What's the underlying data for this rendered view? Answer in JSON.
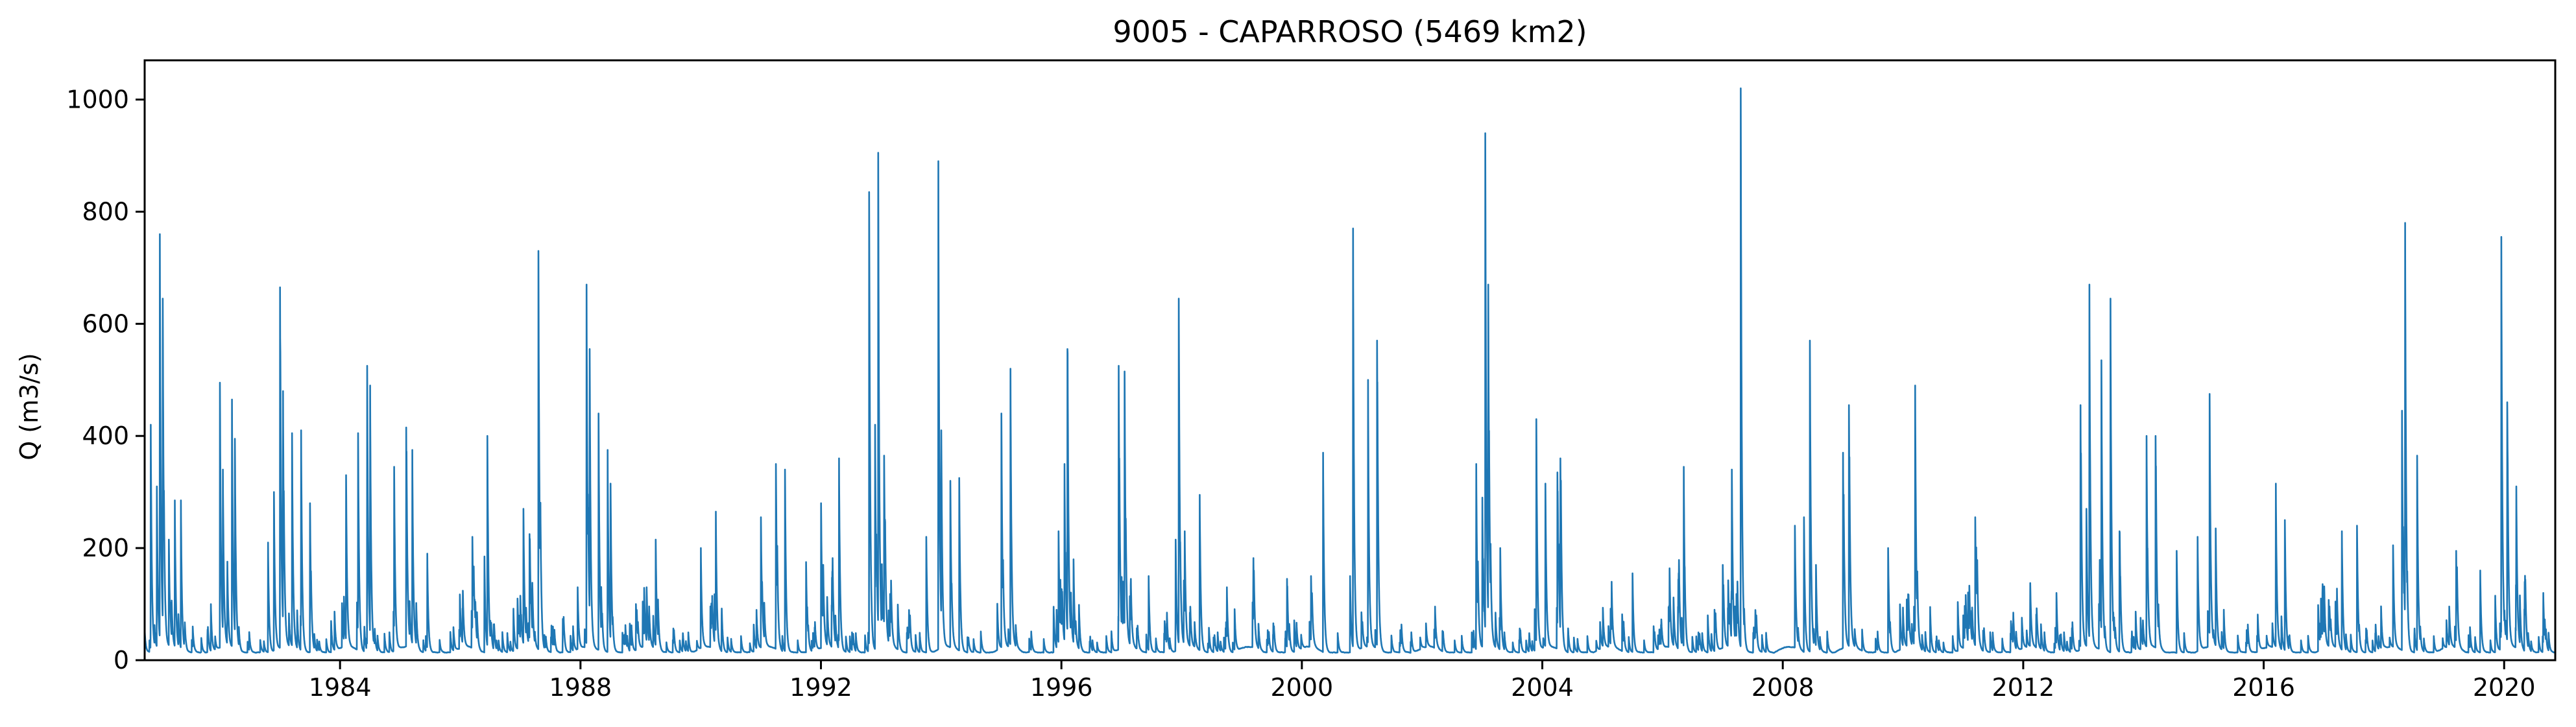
{
  "chart_data": {
    "type": "line",
    "title": "9005 - CAPARROSO (5469 km2)",
    "xlabel": "",
    "ylabel": "Q (m3/s)",
    "xlim": [
      1980.75,
      2020.85
    ],
    "ylim": [
      0,
      1070
    ],
    "xticks": [
      1984,
      1988,
      1992,
      1996,
      2000,
      2004,
      2008,
      2012,
      2016,
      2020
    ],
    "xtick_labels": [
      "1984",
      "1988",
      "1992",
      "1996",
      "2000",
      "2004",
      "2008",
      "2012",
      "2016",
      "2020"
    ],
    "yticks": [
      0,
      200,
      400,
      600,
      800,
      1000
    ],
    "ytick_labels": [
      "0",
      "200",
      "400",
      "600",
      "800",
      "1000"
    ],
    "grid": false,
    "line_color": "#1f77b4",
    "series": [
      {
        "peaks": [
          [
            1980.85,
            420
          ],
          [
            1980.95,
            310
          ],
          [
            1981.0,
            760
          ],
          [
            1981.05,
            645
          ],
          [
            1981.15,
            215
          ],
          [
            1981.25,
            285
          ],
          [
            1981.35,
            285
          ],
          [
            1981.85,
            100
          ],
          [
            1982.0,
            495
          ],
          [
            1982.05,
            340
          ],
          [
            1982.2,
            465
          ],
          [
            1982.25,
            395
          ],
          [
            1982.8,
            210
          ],
          [
            1982.9,
            300
          ],
          [
            1983.0,
            665
          ],
          [
            1983.05,
            480
          ],
          [
            1983.2,
            405
          ],
          [
            1983.35,
            410
          ],
          [
            1983.5,
            280
          ],
          [
            1983.85,
            70
          ],
          [
            1984.1,
            330
          ],
          [
            1984.3,
            405
          ],
          [
            1984.45,
            525
          ],
          [
            1984.5,
            490
          ],
          [
            1984.9,
            345
          ],
          [
            1985.1,
            415
          ],
          [
            1985.2,
            375
          ],
          [
            1985.45,
            190
          ],
          [
            1986.2,
            220
          ],
          [
            1986.4,
            185
          ],
          [
            1986.45,
            400
          ],
          [
            1986.95,
            110
          ],
          [
            1987.05,
            270
          ],
          [
            1987.15,
            225
          ],
          [
            1987.3,
            730
          ],
          [
            1987.95,
            130
          ],
          [
            1988.1,
            670
          ],
          [
            1988.15,
            555
          ],
          [
            1988.3,
            440
          ],
          [
            1988.45,
            375
          ],
          [
            1988.5,
            315
          ],
          [
            1989.1,
            130
          ],
          [
            1989.25,
            215
          ],
          [
            1990.0,
            200
          ],
          [
            1990.25,
            265
          ],
          [
            1991.0,
            255
          ],
          [
            1991.25,
            350
          ],
          [
            1991.4,
            340
          ],
          [
            1991.75,
            175
          ],
          [
            1992.0,
            280
          ],
          [
            1992.3,
            360
          ],
          [
            1992.8,
            835
          ],
          [
            1992.9,
            420
          ],
          [
            1992.95,
            905
          ],
          [
            1993.05,
            365
          ],
          [
            1993.75,
            220
          ],
          [
            1993.95,
            890
          ],
          [
            1994.0,
            410
          ],
          [
            1994.15,
            320
          ],
          [
            1994.3,
            325
          ],
          [
            1995.0,
            440
          ],
          [
            1995.15,
            520
          ],
          [
            1995.95,
            230
          ],
          [
            1996.05,
            350
          ],
          [
            1996.1,
            555
          ],
          [
            1996.2,
            180
          ],
          [
            1996.95,
            525
          ],
          [
            1997.05,
            515
          ],
          [
            1997.45,
            150
          ],
          [
            1997.9,
            215
          ],
          [
            1997.95,
            645
          ],
          [
            1998.05,
            230
          ],
          [
            1998.3,
            295
          ],
          [
            1998.75,
            130
          ],
          [
            1999.2,
            160
          ],
          [
            1999.75,
            145
          ],
          [
            2000.15,
            150
          ],
          [
            2000.35,
            370
          ],
          [
            2000.8,
            150
          ],
          [
            2000.85,
            770
          ],
          [
            2001.1,
            500
          ],
          [
            2001.25,
            570
          ],
          [
            2002.2,
            55
          ],
          [
            2002.9,
            350
          ],
          [
            2003.0,
            290
          ],
          [
            2003.05,
            940
          ],
          [
            2003.1,
            670
          ],
          [
            2003.3,
            200
          ],
          [
            2003.9,
            430
          ],
          [
            2004.05,
            315
          ],
          [
            2004.25,
            335
          ],
          [
            2004.3,
            360
          ],
          [
            2005.15,
            140
          ],
          [
            2005.5,
            155
          ],
          [
            2006.1,
            95
          ],
          [
            2006.35,
            345
          ],
          [
            2006.75,
            80
          ],
          [
            2007.0,
            170
          ],
          [
            2007.15,
            340
          ],
          [
            2007.3,
            1020
          ],
          [
            2008.2,
            240
          ],
          [
            2008.35,
            255
          ],
          [
            2008.45,
            570
          ],
          [
            2008.55,
            170
          ],
          [
            2009.0,
            370
          ],
          [
            2009.1,
            455
          ],
          [
            2009.75,
            200
          ],
          [
            2010.2,
            490
          ],
          [
            2010.45,
            95
          ],
          [
            2011.0,
            80
          ],
          [
            2011.2,
            255
          ],
          [
            2011.45,
            50
          ],
          [
            2012.35,
            50
          ],
          [
            2012.55,
            120
          ],
          [
            2012.95,
            455
          ],
          [
            2013.05,
            270
          ],
          [
            2013.1,
            670
          ],
          [
            2013.3,
            535
          ],
          [
            2013.45,
            645
          ],
          [
            2013.6,
            230
          ],
          [
            2014.05,
            400
          ],
          [
            2014.2,
            400
          ],
          [
            2014.55,
            195
          ],
          [
            2014.9,
            220
          ],
          [
            2015.1,
            475
          ],
          [
            2015.2,
            235
          ],
          [
            2016.2,
            315
          ],
          [
            2016.35,
            250
          ],
          [
            2016.95,
            110
          ],
          [
            2017.3,
            230
          ],
          [
            2017.55,
            240
          ],
          [
            2018.15,
            205
          ],
          [
            2018.3,
            445
          ],
          [
            2018.35,
            780
          ],
          [
            2018.55,
            365
          ],
          [
            2019.2,
            195
          ],
          [
            2019.6,
            160
          ],
          [
            2019.85,
            115
          ],
          [
            2019.95,
            755
          ],
          [
            2020.05,
            460
          ],
          [
            2020.2,
            310
          ],
          [
            2020.65,
            120
          ]
        ]
      }
    ]
  }
}
